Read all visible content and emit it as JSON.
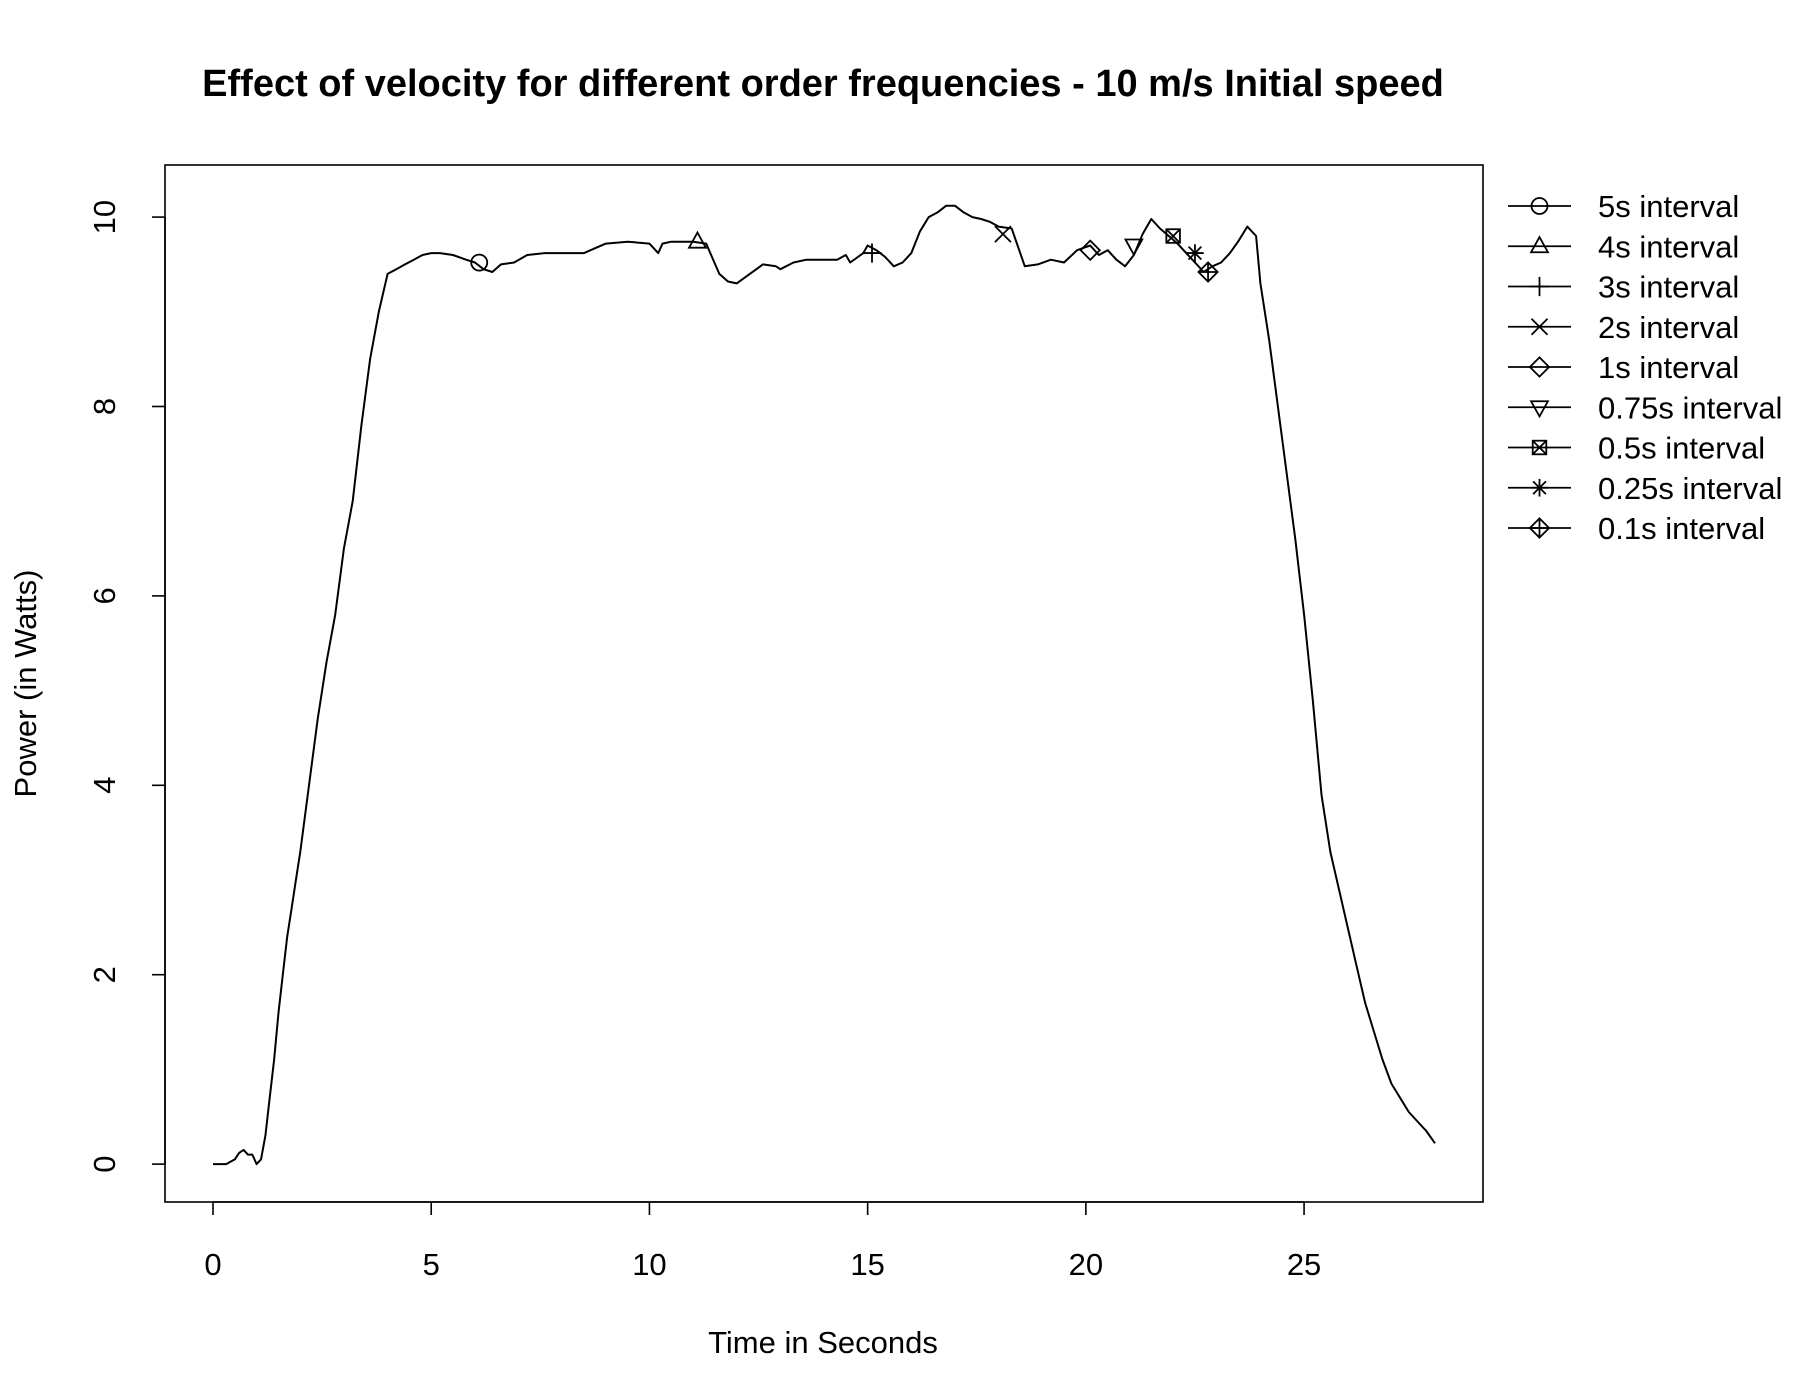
{
  "chart_data": {
    "type": "line",
    "title": "Effect of velocity for different order frequencies - 10 m/s Initial speed",
    "xlabel": "Time in Seconds",
    "ylabel": "Power (in Watts)",
    "xlim": [
      -1.1,
      29.1
    ],
    "ylim": [
      -0.4,
      10.55
    ],
    "x_ticks": [
      0,
      5,
      10,
      15,
      20,
      25
    ],
    "y_ticks": [
      0,
      2,
      4,
      6,
      8,
      10
    ],
    "grid": false,
    "legend_position": "right, outside plot",
    "line_color": "#000000",
    "series_line": {
      "x": [
        0,
        0.3,
        0.5,
        0.6,
        0.7,
        0.8,
        0.9,
        1.0,
        1.1,
        1.2,
        1.3,
        1.4,
        1.5,
        1.6,
        1.7,
        1.8,
        1.9,
        2.0,
        2.2,
        2.4,
        2.6,
        2.8,
        3.0,
        3.2,
        3.4,
        3.6,
        3.8,
        4.0,
        4.2,
        4.4,
        4.6,
        4.8,
        5.0,
        5.2,
        5.5,
        5.8,
        6.0,
        6.2,
        6.4,
        6.6,
        6.9,
        7.2,
        7.6,
        8.0,
        8.5,
        9.0,
        9.5,
        10.0,
        10.2,
        10.3,
        10.5,
        11.0,
        11.3,
        11.6,
        11.8,
        12.0,
        12.3,
        12.6,
        12.9,
        13.0,
        13.3,
        13.6,
        14.0,
        14.3,
        14.5,
        14.6,
        14.9,
        15.0,
        15.2,
        15.4,
        15.6,
        15.8,
        16.0,
        16.2,
        16.4,
        16.6,
        16.8,
        17.0,
        17.2,
        17.4,
        17.6,
        17.8,
        18.0,
        18.3,
        18.6,
        18.9,
        19.2,
        19.5,
        19.8,
        20.1,
        20.3,
        20.5,
        20.7,
        20.9,
        21.1,
        21.3,
        21.5,
        21.7,
        21.9,
        22.1,
        22.3,
        22.5,
        22.7,
        22.9,
        23.1,
        23.3,
        23.5,
        23.7,
        23.9,
        24.0,
        24.2,
        24.4,
        24.6,
        24.8,
        25.0,
        25.2,
        25.4,
        25.6,
        25.8,
        26.0,
        26.2,
        26.4,
        26.6,
        26.8,
        27.0,
        27.2,
        27.4,
        27.6,
        27.8,
        28.0
      ],
      "y": [
        0,
        0,
        0.05,
        0.12,
        0.15,
        0.1,
        0.1,
        0,
        0.05,
        0.3,
        0.7,
        1.1,
        1.6,
        2.0,
        2.4,
        2.7,
        3.0,
        3.3,
        4.0,
        4.7,
        5.3,
        5.8,
        6.5,
        7.0,
        7.8,
        8.5,
        9.0,
        9.4,
        9.45,
        9.5,
        9.55,
        9.6,
        9.62,
        9.62,
        9.6,
        9.55,
        9.52,
        9.45,
        9.42,
        9.5,
        9.52,
        9.6,
        9.62,
        9.62,
        9.62,
        9.72,
        9.74,
        9.72,
        9.62,
        9.72,
        9.74,
        9.74,
        9.72,
        9.4,
        9.32,
        9.3,
        9.4,
        9.5,
        9.48,
        9.45,
        9.52,
        9.55,
        9.55,
        9.55,
        9.6,
        9.52,
        9.62,
        9.7,
        9.65,
        9.58,
        9.48,
        9.52,
        9.62,
        9.85,
        10.0,
        10.05,
        10.12,
        10.12,
        10.05,
        10.0,
        9.98,
        9.95,
        9.9,
        9.88,
        9.48,
        9.5,
        9.55,
        9.52,
        9.65,
        9.7,
        9.6,
        9.65,
        9.55,
        9.48,
        9.6,
        9.82,
        9.98,
        9.88,
        9.8,
        9.72,
        9.62,
        9.52,
        9.42,
        9.48,
        9.52,
        9.62,
        9.75,
        9.9,
        9.8,
        9.3,
        8.7,
        8.0,
        7.3,
        6.6,
        5.8,
        4.9,
        3.9,
        3.3,
        2.9,
        2.5,
        2.1,
        1.7,
        1.4,
        1.1,
        0.85,
        0.7,
        0.55,
        0.45,
        0.35,
        0.22
      ]
    },
    "series": [
      {
        "name": "5s interval",
        "marker": "circle",
        "x": 6.1,
        "y": 9.52
      },
      {
        "name": "4s interval",
        "marker": "triangle-up",
        "x": 11.1,
        "y": 9.74
      },
      {
        "name": "3s interval",
        "marker": "plus",
        "x": 15.1,
        "y": 9.62
      },
      {
        "name": "2s interval",
        "marker": "cross",
        "x": 18.1,
        "y": 9.82
      },
      {
        "name": "1s interval",
        "marker": "diamond",
        "x": 20.1,
        "y": 9.65
      },
      {
        "name": "0.75s interval",
        "marker": "triangle-down",
        "x": 21.1,
        "y": 9.7
      },
      {
        "name": "0.5s interval",
        "marker": "square-cross",
        "x": 22.0,
        "y": 9.8
      },
      {
        "name": "0.25s interval",
        "marker": "asterisk",
        "x": 22.5,
        "y": 9.62
      },
      {
        "name": "0.1s interval",
        "marker": "diamond-plus",
        "x": 22.8,
        "y": 9.42
      }
    ]
  }
}
